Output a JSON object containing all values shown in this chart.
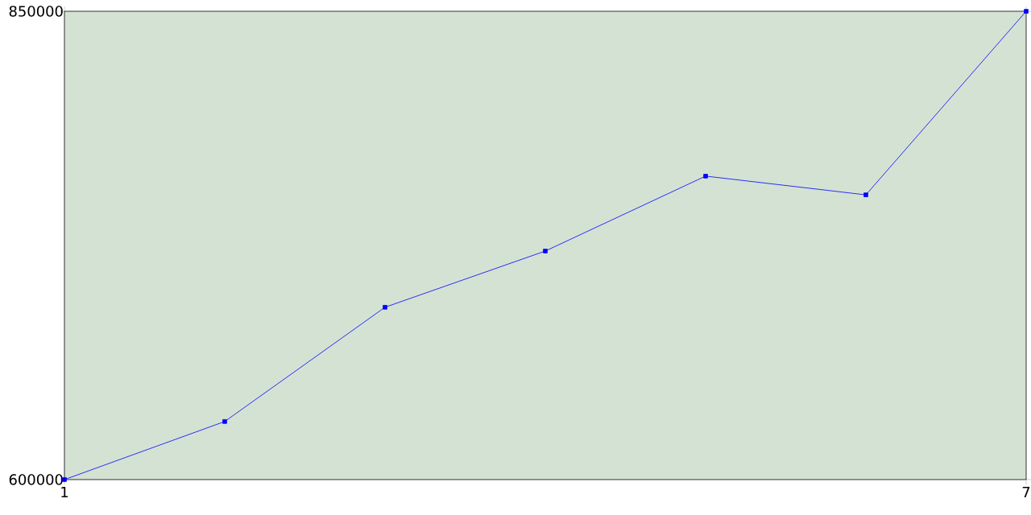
{
  "chart_data": {
    "type": "line",
    "x": [
      1,
      2,
      3,
      4,
      5,
      6,
      7
    ],
    "series": [
      {
        "color": "#0000ff",
        "values": [
          600000,
          631000,
          692000,
          722000,
          762000,
          752000,
          850000
        ]
      }
    ],
    "xlim": [
      1,
      7
    ],
    "ylim": [
      600000,
      850000
    ],
    "xticks": [
      1,
      7
    ],
    "yticks": [
      600000,
      850000
    ],
    "marker": "square",
    "line_style": "solid"
  }
}
